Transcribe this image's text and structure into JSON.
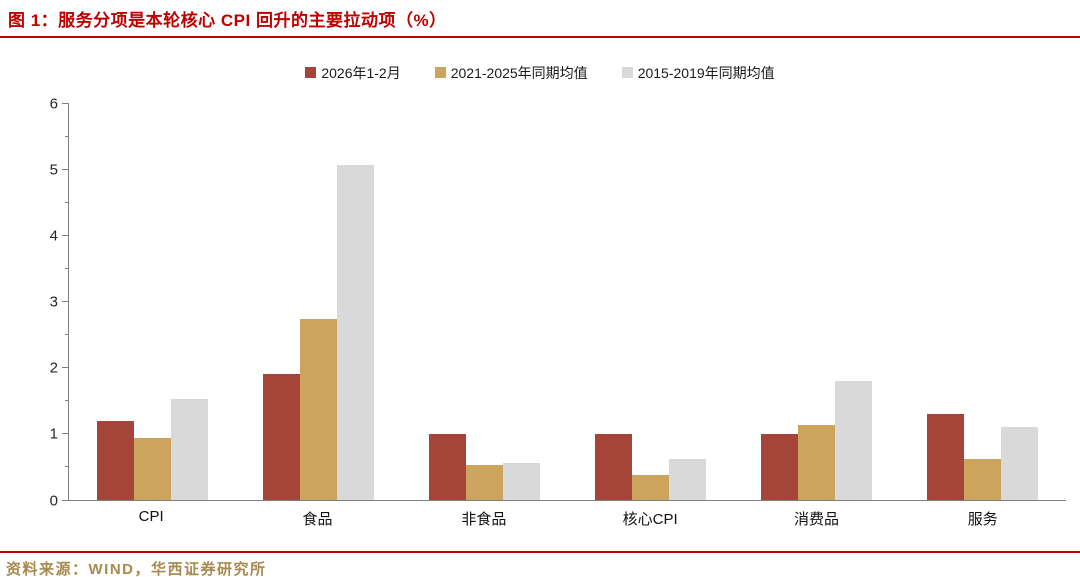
{
  "title": {
    "text": "图 1：服务分项是本轮核心 CPI 回升的主要拉动项（%）"
  },
  "footer": {
    "source": "资料来源：WIND，华西证券研究所"
  },
  "colors": {
    "title_red": "#c00000",
    "rule_red": "#c00000",
    "source_gold": "#a8894e",
    "axis_gray": "#808080",
    "series_red": "#a5453a",
    "series_gold": "#cda45e",
    "series_gray": "#d9d9d9"
  },
  "chart_data": {
    "type": "bar",
    "title": "图 1：服务分项是本轮核心 CPI 回升的主要拉动项（%）",
    "categories": [
      "CPI",
      "食品",
      "非食品",
      "核心CPI",
      "消费品",
      "服务"
    ],
    "series": [
      {
        "name": "2026年1-2月",
        "color": "#a5453a",
        "values": [
          1.2,
          1.9,
          1.0,
          1.0,
          1.0,
          1.3
        ]
      },
      {
        "name": "2021-2025年同期均值",
        "color": "#cda45e",
        "values": [
          0.93,
          2.74,
          0.53,
          0.38,
          1.14,
          0.62
        ]
      },
      {
        "name": "2015-2019年同期均值",
        "color": "#d9d9d9",
        "values": [
          1.52,
          5.07,
          0.56,
          0.62,
          1.8,
          1.1
        ]
      }
    ],
    "xlabel": "",
    "ylabel": "",
    "ylim": [
      0,
      6
    ],
    "yticks": [
      0,
      1,
      2,
      3,
      4,
      5,
      6
    ],
    "minor_tick_step": 0.5,
    "grid": false,
    "legend_position": "top"
  }
}
